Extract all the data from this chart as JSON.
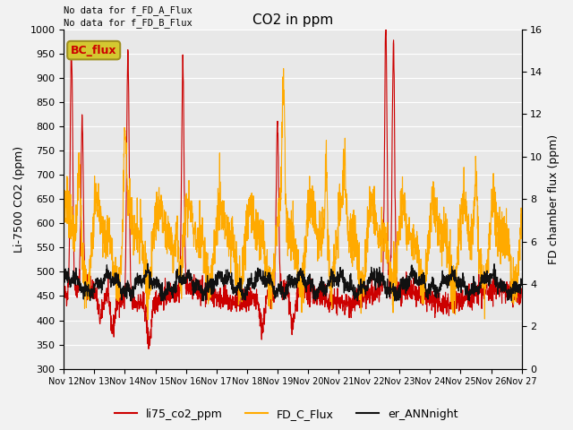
{
  "title": "CO2 in ppm",
  "ylabel_left": "Li-7500 CO2 (ppm)",
  "ylabel_right": "FD chamber flux (ppm)",
  "ylim_left": [
    300,
    1000
  ],
  "ylim_right": [
    0,
    16
  ],
  "yticks_left": [
    300,
    350,
    400,
    450,
    500,
    550,
    600,
    650,
    700,
    750,
    800,
    850,
    900,
    950,
    1000
  ],
  "yticks_right": [
    0,
    2,
    4,
    6,
    8,
    10,
    12,
    14,
    16
  ],
  "xlabel_ticks": [
    "Nov 12",
    "Nov 13",
    "Nov 14",
    "Nov 15",
    "Nov 16",
    "Nov 17",
    "Nov 18",
    "Nov 19",
    "Nov 20",
    "Nov 21",
    "Nov 22",
    "Nov 23",
    "Nov 24",
    "Nov 25",
    "Nov 26",
    "Nov 27"
  ],
  "text_top_left": [
    "No data for f_FD_A_Flux",
    "No data for f_FD_B_Flux"
  ],
  "bc_flux_label": "BC_flux",
  "bc_flux_bg_color": "#d4c830",
  "bc_flux_text_color": "#cc0000",
  "bc_flux_edge_color": "#a09020",
  "legend_entries": [
    "li75_co2_ppm",
    "FD_C_Flux",
    "er_ANNnight"
  ],
  "legend_colors": [
    "#cc0000",
    "#ffaa00",
    "#111111"
  ],
  "line_colors": {
    "li75": "#cc0000",
    "fd_c": "#ffaa00",
    "er_ann": "#111111"
  },
  "line_widths": {
    "li75": 0.8,
    "fd_c": 0.8,
    "er_ann": 0.9
  },
  "background_color": "#e8e8e8",
  "grid_color": "#ffffff",
  "fig_facecolor": "#f2f2f2"
}
